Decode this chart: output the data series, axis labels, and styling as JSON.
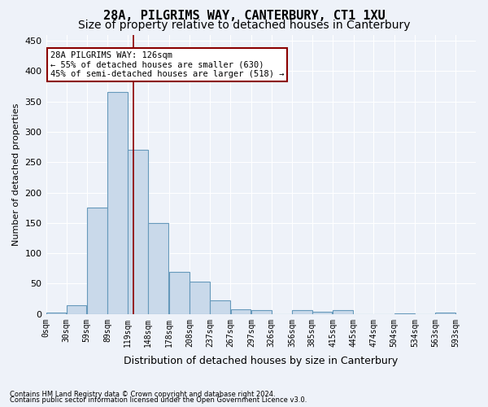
{
  "title1": "28A, PILGRIMS WAY, CANTERBURY, CT1 1XU",
  "title2": "Size of property relative to detached houses in Canterbury",
  "xlabel": "Distribution of detached houses by size in Canterbury",
  "ylabel": "Number of detached properties",
  "bar_left_edges": [
    0,
    29.5,
    59,
    89,
    118.5,
    148,
    178,
    208,
    237,
    267,
    297,
    326,
    356,
    385,
    415,
    445,
    474,
    504,
    534,
    563
  ],
  "bar_heights": [
    2,
    15,
    175,
    365,
    270,
    150,
    69,
    53,
    22,
    8,
    7,
    0,
    6,
    4,
    6,
    0,
    0,
    1,
    0,
    2
  ],
  "bar_width": 29.5,
  "bar_color": "#c9d9ea",
  "bar_edge_color": "#6699bb",
  "property_line_x": 126,
  "xlim": [
    0,
    622
  ],
  "ylim": [
    0,
    460
  ],
  "yticks": [
    0,
    50,
    100,
    150,
    200,
    250,
    300,
    350,
    400,
    450
  ],
  "xtick_positions": [
    0,
    29.5,
    59,
    89,
    118.5,
    148,
    178,
    208,
    237,
    267,
    297,
    326,
    356,
    385,
    415,
    445,
    474,
    504,
    534,
    563,
    592.5
  ],
  "xtick_labels": [
    "0sqm",
    "30sqm",
    "59sqm",
    "89sqm",
    "119sqm",
    "148sqm",
    "178sqm",
    "208sqm",
    "237sqm",
    "267sqm",
    "297sqm",
    "326sqm",
    "356sqm",
    "385sqm",
    "415sqm",
    "445sqm",
    "474sqm",
    "504sqm",
    "534sqm",
    "563sqm",
    "593sqm"
  ],
  "annotation_line1": "28A PILGRIMS WAY: 126sqm",
  "annotation_line2": "← 55% of detached houses are smaller (630)",
  "annotation_line3": "45% of semi-detached houses are larger (518) →",
  "footnote1": "Contains HM Land Registry data © Crown copyright and database right 2024.",
  "footnote2": "Contains public sector information licensed under the Open Government Licence v3.0.",
  "background_color": "#eef2f9",
  "plot_bg_color": "#eef2f9",
  "grid_color": "#ffffff",
  "title_fontsize": 11,
  "subtitle_fontsize": 10,
  "tick_fontsize": 7,
  "ylabel_fontsize": 8,
  "xlabel_fontsize": 9
}
